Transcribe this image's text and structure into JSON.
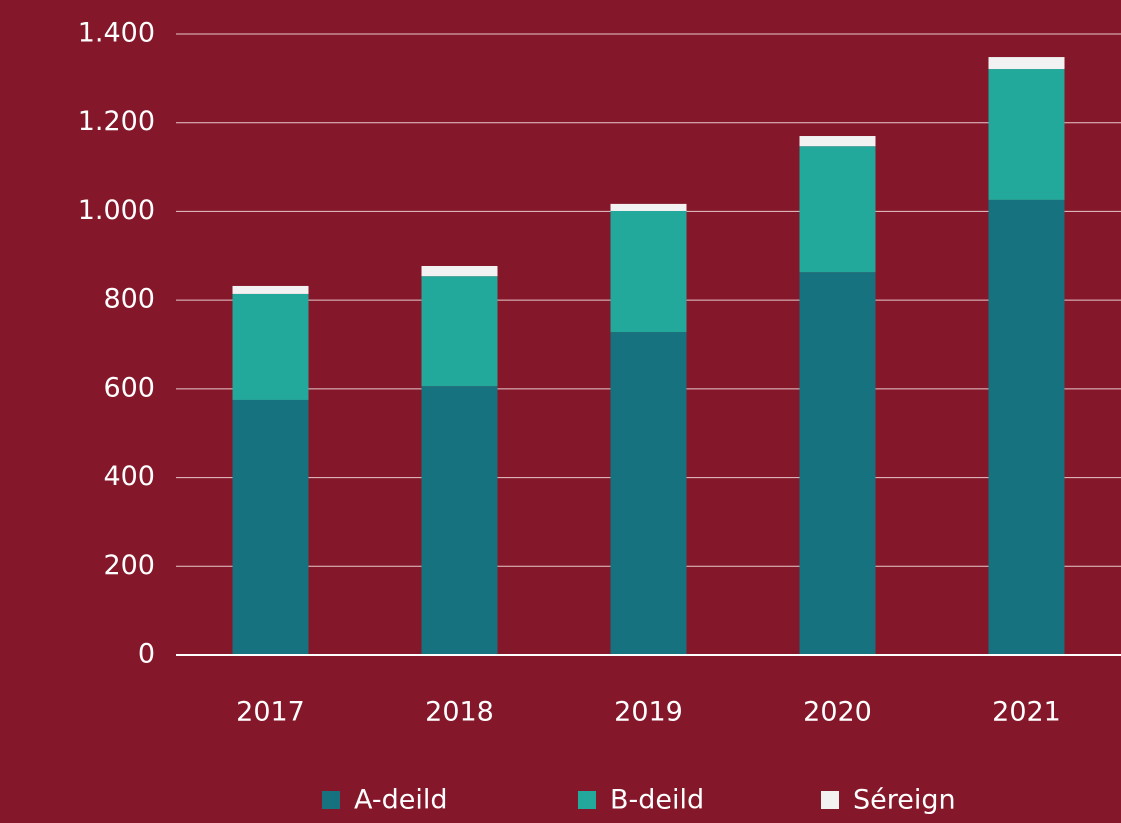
{
  "chart_data": {
    "type": "stacked_bar",
    "categories": [
      "2017",
      "2018",
      "2019",
      "2020",
      "2021"
    ],
    "series": [
      {
        "name": "A-deild",
        "color": "#17727f",
        "values": [
          575,
          606,
          728,
          863,
          1026
        ]
      },
      {
        "name": "B-deild",
        "color": "#22a99b",
        "values": [
          239,
          248,
          273,
          284,
          295
        ]
      },
      {
        "name": "Séreign",
        "color": "#f2f2f2",
        "values": [
          18,
          23,
          16,
          23,
          27
        ]
      }
    ],
    "ylim": [
      0,
      1400
    ],
    "yticks": [
      0,
      200,
      400,
      600,
      800,
      {
        "value": 1000,
        "label": "1.000"
      },
      {
        "value": 1200,
        "label": "1.200"
      },
      {
        "value": 1400,
        "label": "1.400"
      }
    ],
    "grid": true,
    "legend": "bottom"
  }
}
